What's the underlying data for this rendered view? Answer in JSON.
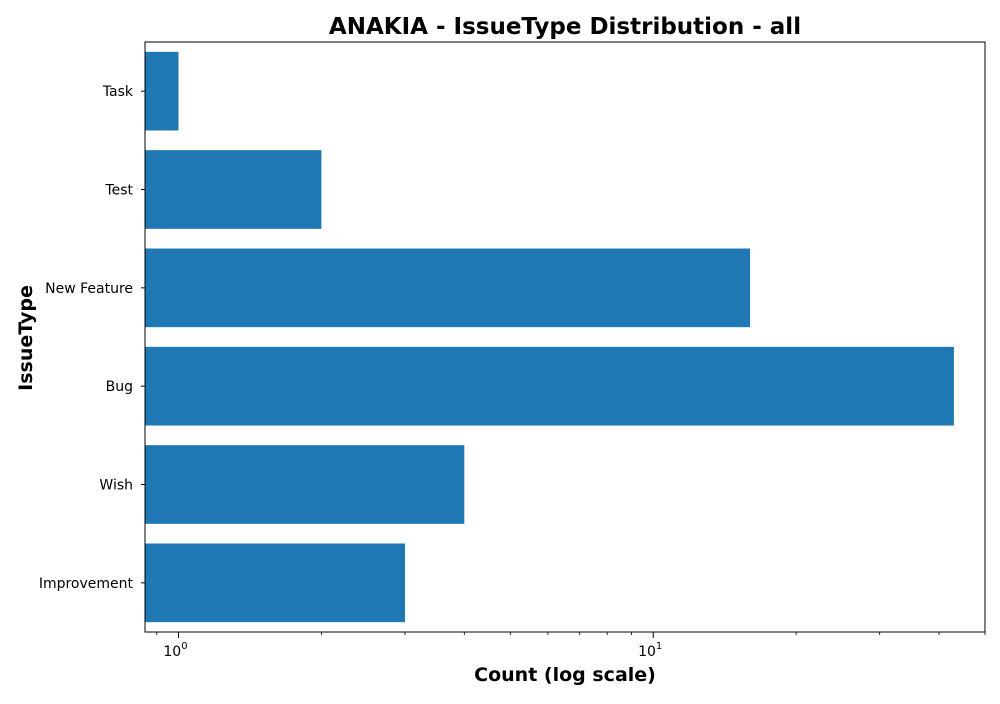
{
  "chart_data": {
    "type": "bar",
    "orientation": "horizontal",
    "title": "ANAKIA - IssueType Distribution - all",
    "xlabel": "Count (log scale)",
    "ylabel": "IssueType",
    "x_scale": "log",
    "xlim": [
      0.85,
      50
    ],
    "x_major_ticks": [
      {
        "value": 1,
        "base": "10",
        "exp": "0"
      },
      {
        "value": 10,
        "base": "10",
        "exp": "1"
      }
    ],
    "categories": [
      "Task",
      "Test",
      "New Feature",
      "Bug",
      "Wish",
      "Improvement"
    ],
    "values": [
      1,
      2,
      16,
      43,
      4,
      3
    ],
    "bar_color": "#1f77b4",
    "grid": false,
    "legend": "none"
  }
}
